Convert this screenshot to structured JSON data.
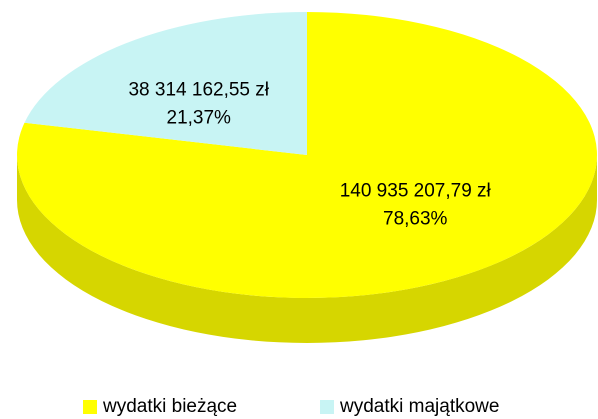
{
  "chart_data": {
    "type": "pie",
    "categories": [
      "wydatki bieżące",
      "wydatki majątkowe"
    ],
    "values": [
      140935207.79,
      38314162.55
    ],
    "value_labels": [
      "140 935 207,79 zł",
      "38 314 162,55 zł"
    ],
    "percentages": [
      78.63,
      21.37
    ],
    "percentage_labels": [
      "78,63%",
      "21,37%"
    ],
    "colors": [
      "#ffff00",
      "#c8f4f4"
    ],
    "side_colors": [
      "#d6d600",
      "#a6d4d4"
    ],
    "legend": "bottom"
  }
}
